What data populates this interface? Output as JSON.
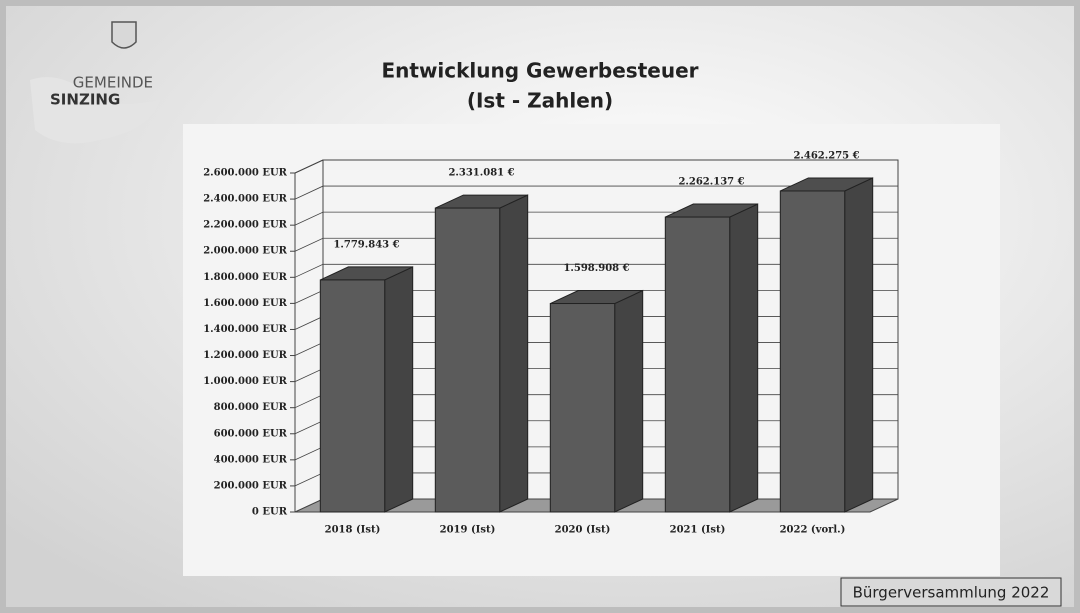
{
  "logo": {
    "line1": "GEMEINDE",
    "line2": "SINZING"
  },
  "footer": "Bürgerversammlung 2022",
  "chart_data": {
    "type": "bar3d",
    "title": "Entwicklung Gewerbesteuer",
    "subtitle": "(Ist - Zahlen)",
    "categories": [
      "2018 (Ist)",
      "2019 (Ist)",
      "2020 (Ist)",
      "2021 (Ist)",
      "2022 (vorl.)"
    ],
    "values": [
      1779843,
      2331081,
      1598908,
      2262137,
      2462275
    ],
    "value_labels": [
      "1.779.843 €",
      "2.331.081 €",
      "1.598.908 €",
      "2.262.137 €",
      "2.462.275 €"
    ],
    "color": "#5b5b5b",
    "ylim": [
      0,
      2600000
    ],
    "yticks": [
      {
        "value": 0,
        "label": "0 EUR"
      },
      {
        "value": 200000,
        "label": "200.000 EUR"
      },
      {
        "value": 400000,
        "label": "400.000 EUR"
      },
      {
        "value": 600000,
        "label": "600.000 EUR"
      },
      {
        "value": 800000,
        "label": "800.000 EUR"
      },
      {
        "value": 1000000,
        "label": "1.000.000 EUR"
      },
      {
        "value": 1200000,
        "label": "1.200.000 EUR"
      },
      {
        "value": 1400000,
        "label": "1.400.000 EUR"
      },
      {
        "value": 1600000,
        "label": "1.600.000 EUR"
      },
      {
        "value": 1800000,
        "label": "1.800.000 EUR"
      },
      {
        "value": 2000000,
        "label": "2.000.000 EUR"
      },
      {
        "value": 2200000,
        "label": "2.200.000 EUR"
      },
      {
        "value": 2400000,
        "label": "2.400.000 EUR"
      },
      {
        "value": 2600000,
        "label": "2.600.000 EUR"
      }
    ],
    "grid": true
  }
}
